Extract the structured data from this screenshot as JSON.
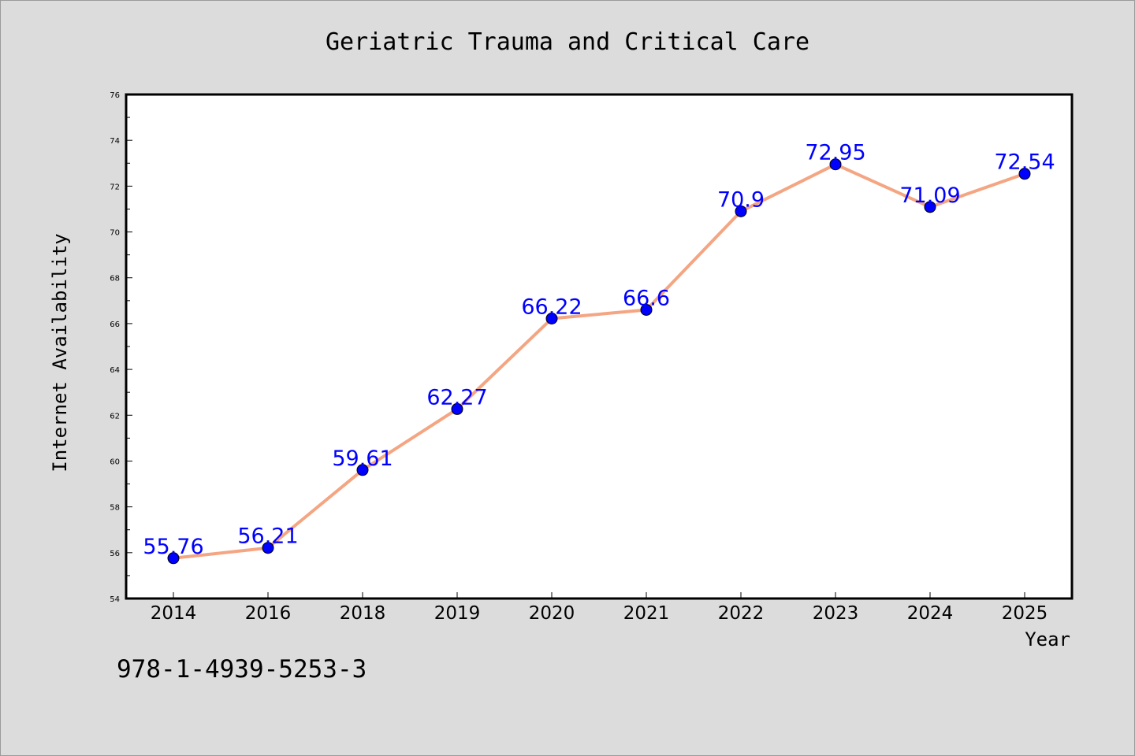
{
  "chart_data": {
    "type": "line",
    "title": "Geriatric Trauma and Critical Care",
    "xlabel": "Year",
    "ylabel": "Internet Availability",
    "categories": [
      "2014",
      "2016",
      "2018",
      "2019",
      "2020",
      "2021",
      "2022",
      "2023",
      "2024",
      "2025"
    ],
    "values": [
      55.76,
      56.21,
      59.61,
      62.27,
      66.22,
      66.6,
      70.9,
      72.95,
      71.09,
      72.54
    ],
    "data_labels": [
      "55.76",
      "56.21",
      "59.61",
      "62.27",
      "66.22",
      "66.6",
      "70.9",
      "72.95",
      "71.09",
      "72.54"
    ],
    "ylim": [
      54,
      76
    ],
    "yticks": [
      54,
      56,
      58,
      60,
      62,
      64,
      66,
      68,
      70,
      72,
      74,
      76
    ],
    "grid": false,
    "line_color": "#f4a582",
    "marker_color": "#0000ff",
    "label_color": "#0000ff",
    "background_color": "#dcdcdc",
    "plot_background_color": "#ffffff"
  },
  "annotation": {
    "isbn": "978-1-4939-5253-3"
  }
}
